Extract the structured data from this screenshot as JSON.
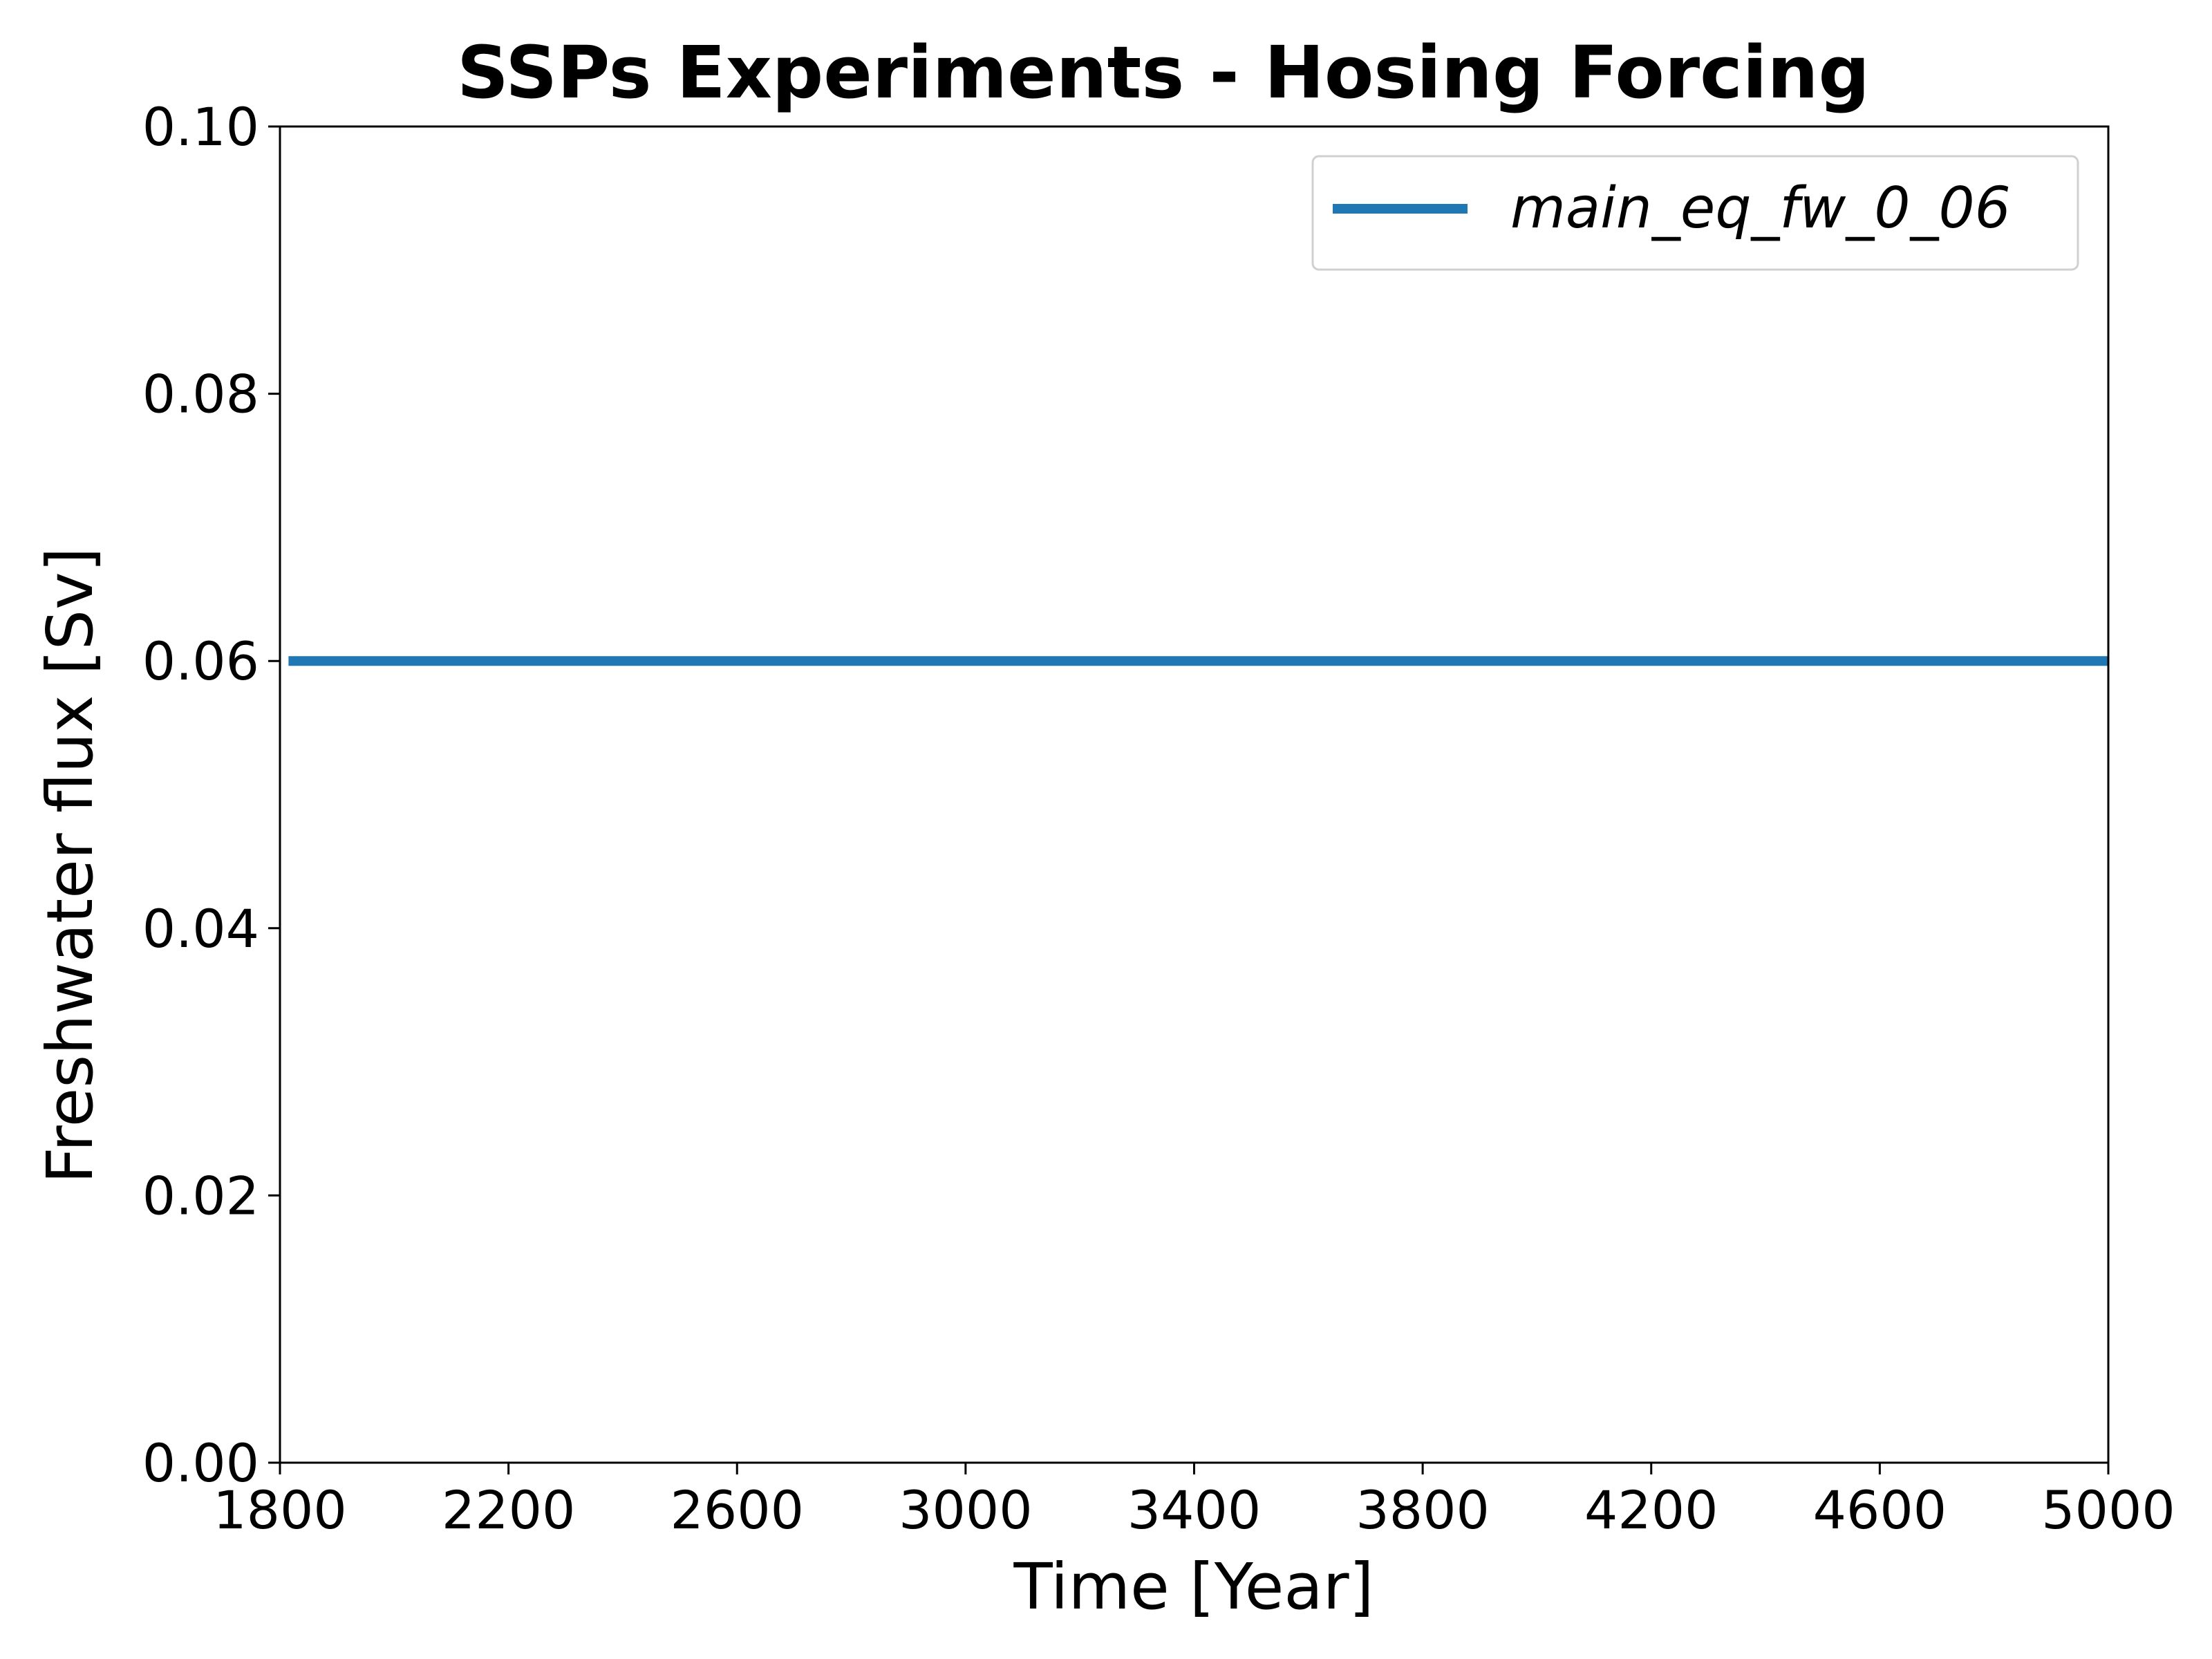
{
  "chart_data": {
    "type": "line",
    "title": "SSPs Experiments - Hosing Forcing",
    "xlabel": "Time [Year]",
    "ylabel": "Freshwater flux [Sv]",
    "xlim": [
      1800,
      5000
    ],
    "ylim": [
      0.0,
      0.1
    ],
    "x_ticks": [
      1800,
      2200,
      2600,
      3000,
      3400,
      3800,
      4200,
      4600,
      5000
    ],
    "x_tick_labels": [
      "1800",
      "2200",
      "2600",
      "3000",
      "3400",
      "3800",
      "4200",
      "4600",
      "5000"
    ],
    "y_ticks": [
      0.0,
      0.02,
      0.04,
      0.06,
      0.08,
      0.1
    ],
    "y_tick_labels": [
      "0.00",
      "0.02",
      "0.04",
      "0.06",
      "0.08",
      "0.10"
    ],
    "grid": false,
    "legend_position": "top-right",
    "series": [
      {
        "name": "main_eq_fw_0_06",
        "color": "#1f77b4",
        "x": [
          1815,
          5000
        ],
        "y": [
          0.06,
          0.06
        ]
      }
    ]
  }
}
